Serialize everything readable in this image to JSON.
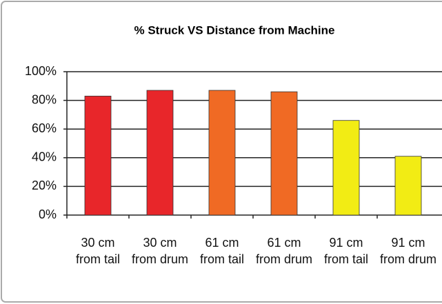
{
  "chart_data": {
    "type": "bar",
    "title": "% Struck VS Distance from Machine",
    "categories": [
      "30 cm from tail",
      "30 cm from drum",
      "61 cm from tail",
      "61 cm from drum",
      "91 cm from tail",
      "91 cm from drum"
    ],
    "values": [
      83,
      87,
      87,
      86,
      66,
      41
    ],
    "colors": [
      "#e8262a",
      "#e8262a",
      "#f06a24",
      "#f06a24",
      "#f2ec14",
      "#f2ec14"
    ],
    "ylim": [
      0,
      100
    ],
    "yticks": [
      {
        "value": 0,
        "label": "0%"
      },
      {
        "value": 20,
        "label": "20%"
      },
      {
        "value": 40,
        "label": "40%"
      },
      {
        "value": 60,
        "label": "60%"
      },
      {
        "value": 80,
        "label": "80%"
      },
      {
        "value": 100,
        "label": "100%"
      }
    ],
    "grid": true
  }
}
